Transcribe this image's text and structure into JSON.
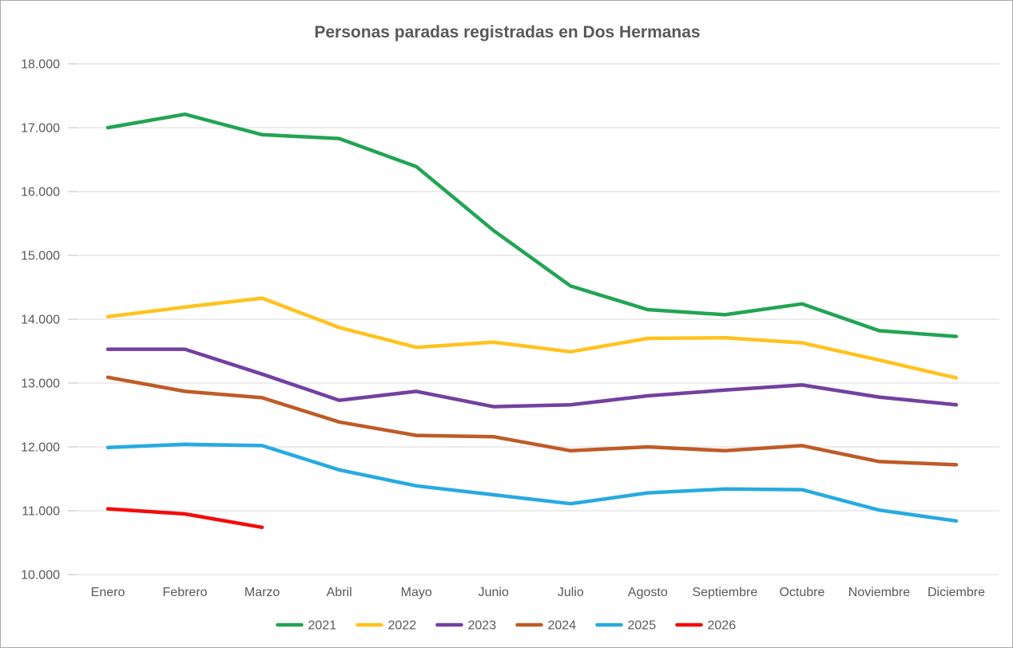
{
  "window": {
    "background_color": "#FFFFFF",
    "border_color": "#ABABAB"
  },
  "chart_data": {
    "type": "line",
    "title": "Personas paradas registradas en Dos Hermanas",
    "title_color": "#595959",
    "text_color": "#595959",
    "gridline_color": "#D9D9D9",
    "tick_color": "#BFBFBF",
    "grid": true,
    "legend_position": "bottom",
    "categories": [
      "Enero",
      "Febrero",
      "Marzo",
      "Abril",
      "Mayo",
      "Junio",
      "Julio",
      "Agosto",
      "Septiembre",
      "Octubre",
      "Noviembre",
      "Diciembre"
    ],
    "series": [
      {
        "name": "2021",
        "color": "#22A454",
        "values": [
          17000,
          17210,
          16890,
          16830,
          16390,
          15390,
          14520,
          14150,
          14070,
          14240,
          13820,
          13730
        ]
      },
      {
        "name": "2022",
        "color": "#FFC21E",
        "values": [
          14040,
          14190,
          14330,
          13870,
          13560,
          13640,
          13490,
          13700,
          13710,
          13630,
          13360,
          13080
        ]
      },
      {
        "name": "2023",
        "color": "#7340A0",
        "values": [
          13530,
          13530,
          13140,
          12730,
          12870,
          12630,
          12660,
          12800,
          12890,
          12970,
          12780,
          12660
        ]
      },
      {
        "name": "2024",
        "color": "#BF5B27",
        "values": [
          13090,
          12870,
          12770,
          12390,
          12180,
          12160,
          11940,
          12000,
          11940,
          12020,
          11770,
          11720
        ]
      },
      {
        "name": "2025",
        "color": "#27AAE1",
        "values": [
          11990,
          12040,
          12020,
          11640,
          11390,
          11250,
          11110,
          11280,
          11340,
          11330,
          11010,
          10840
        ]
      },
      {
        "name": "2026",
        "color": "#F40B0B",
        "values": [
          11030,
          10950,
          10740
        ]
      }
    ],
    "y_axis": {
      "min": 10000,
      "max": 18000,
      "step": 1000,
      "tick_labels": [
        "10.000",
        "11.000",
        "12.000",
        "13.000",
        "14.000",
        "15.000",
        "16.000",
        "17.000",
        "18.000"
      ]
    },
    "legend_entries": [
      "2021",
      "2022",
      "2023",
      "2024",
      "2025",
      "2026"
    ]
  }
}
